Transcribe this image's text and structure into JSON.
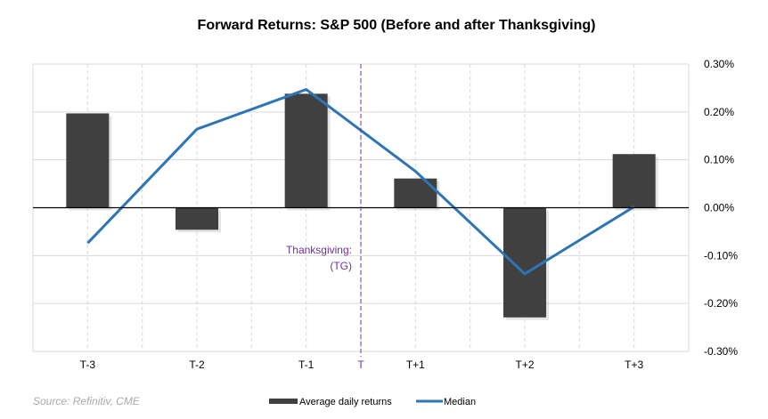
{
  "chart_data": {
    "type": "bar+line",
    "title": "Forward Returns: S&P 500 (Before and after Thanksgiving)",
    "categories": [
      "T-3",
      "T-2",
      "T-1",
      "T+1",
      "T+2",
      "T+3"
    ],
    "series": [
      {
        "name": "Average daily returns",
        "type": "bar",
        "color": "#404040",
        "values": [
          0.197,
          -0.046,
          0.238,
          0.061,
          -0.229,
          0.112
        ]
      },
      {
        "name": "Median",
        "type": "line",
        "color": "#2e75b6",
        "values": [
          -0.074,
          0.164,
          0.247,
          0.076,
          -0.138,
          0.002
        ]
      }
    ],
    "ylim": [
      -0.3,
      0.3
    ],
    "yticks": [
      0.3,
      0.2,
      0.1,
      0.0,
      -0.1,
      -0.2,
      -0.3
    ],
    "ytick_labels": [
      "0.30%",
      "0.20%",
      "0.10%",
      "0.00%",
      "-0.10%",
      "-0.20%",
      "-0.30%"
    ],
    "yaxis_side": "right",
    "grid": true,
    "marker": {
      "label": "T",
      "color": "#7030a0",
      "annotation_line1": "Thanksgiving:",
      "annotation_line2": "(TG)"
    },
    "legend_position": "bottom",
    "source": "Source: Refinitiv, CME"
  }
}
